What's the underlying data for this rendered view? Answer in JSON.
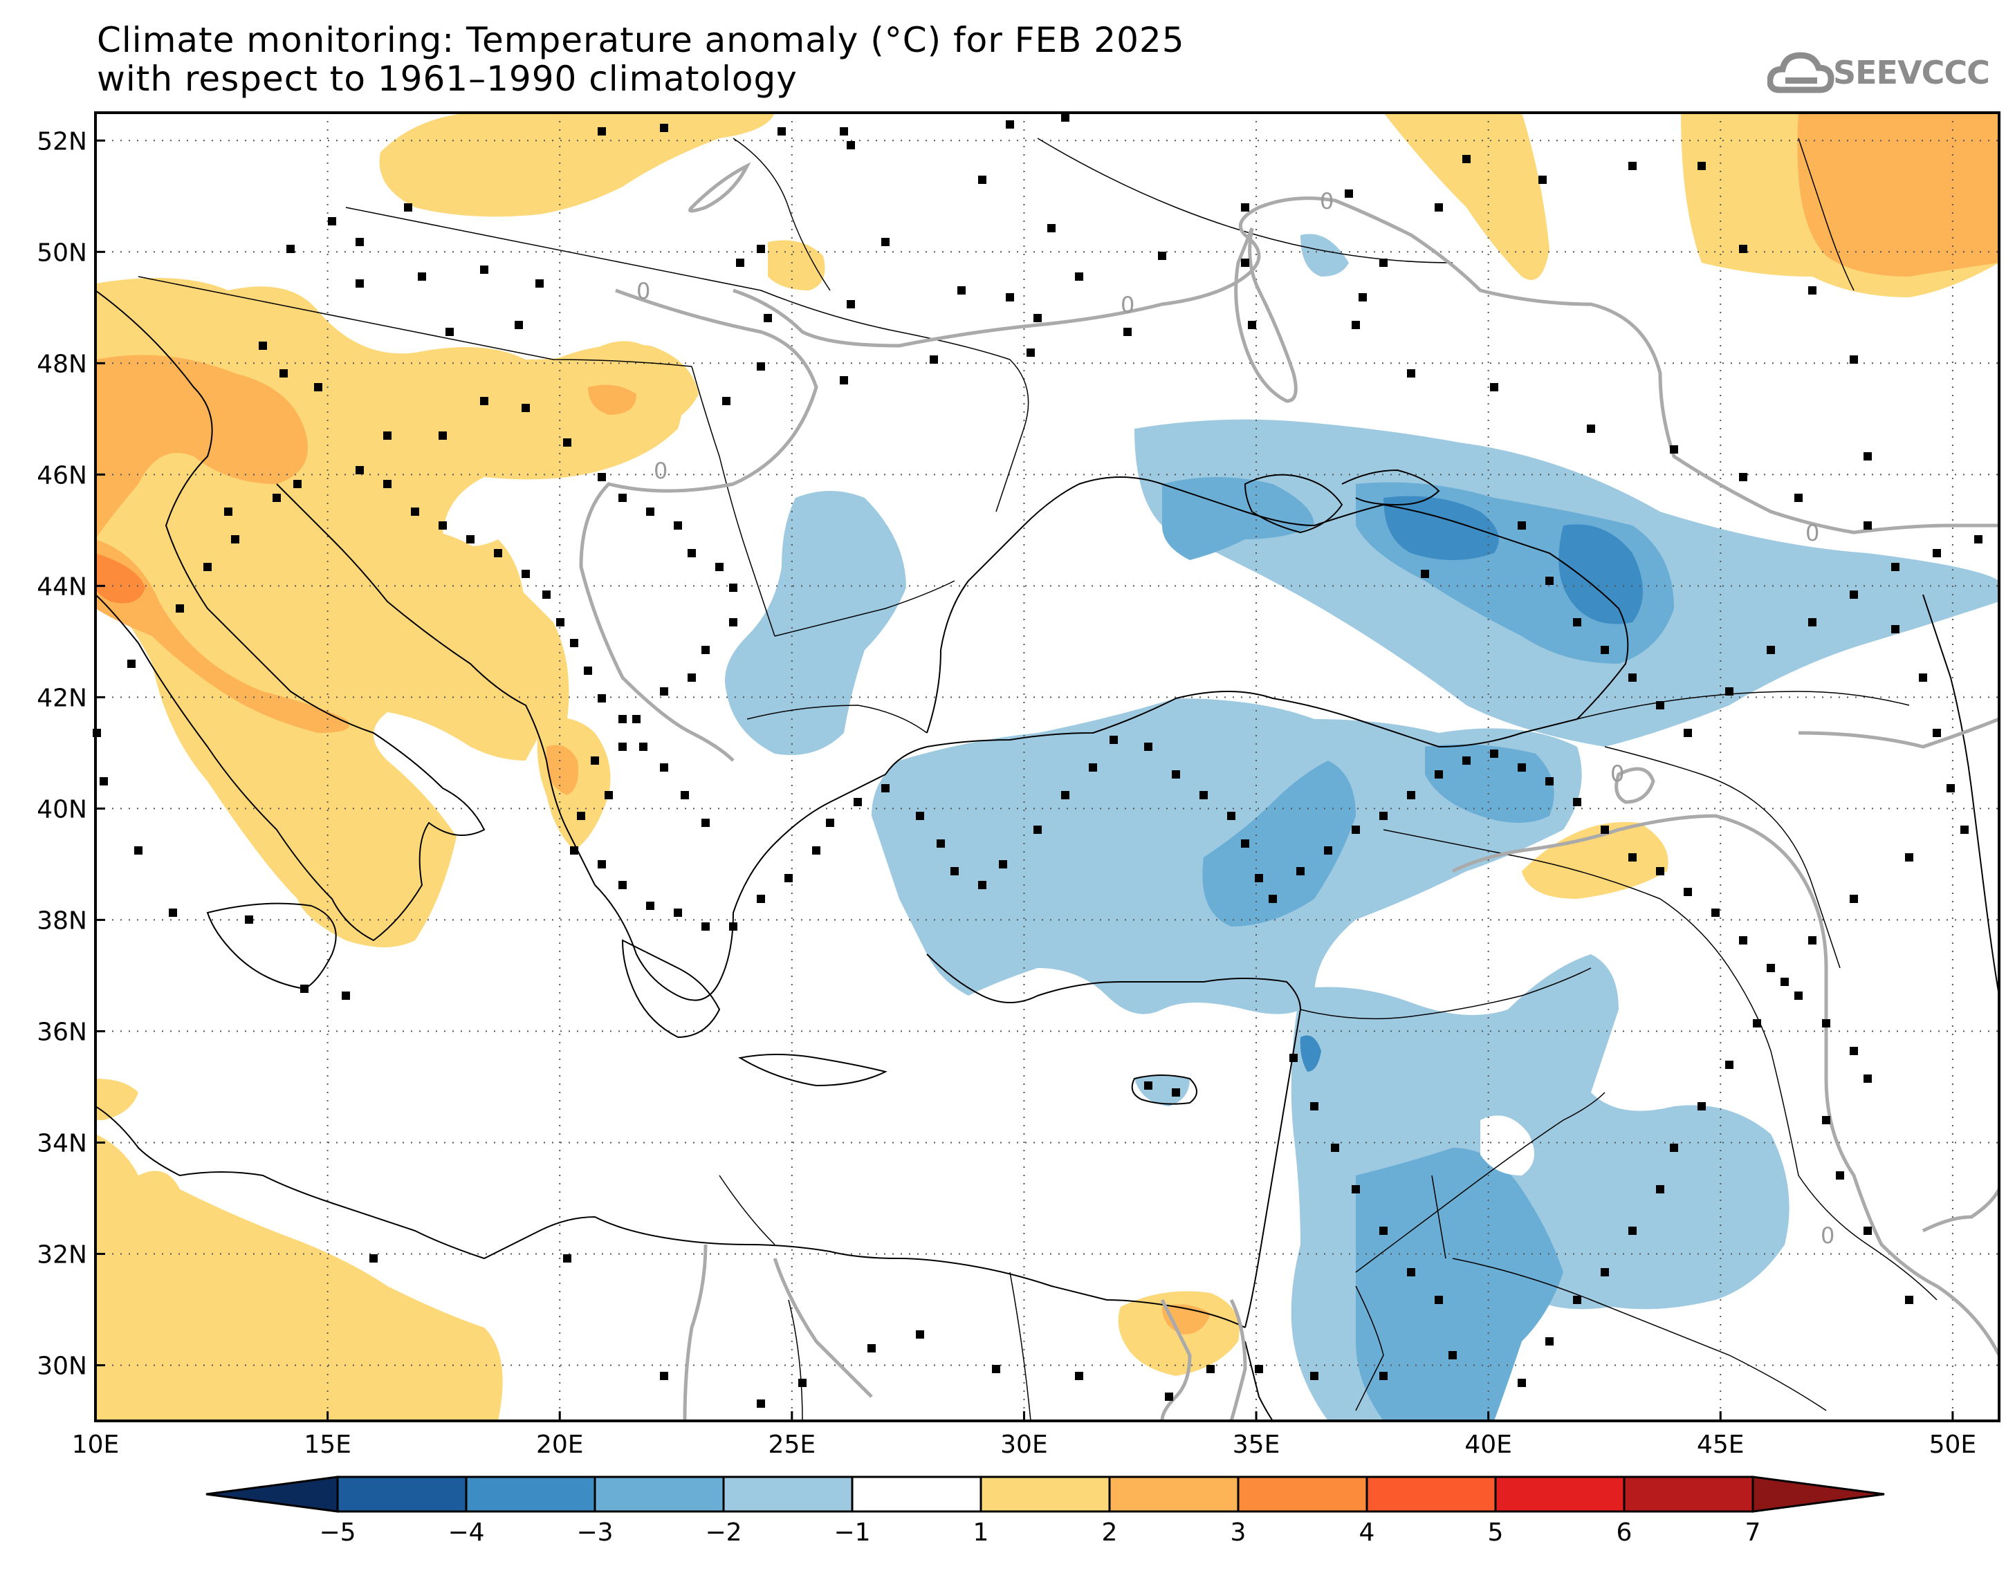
{
  "title": {
    "line1": "Climate monitoring: Temperature anomaly (°C) for FEB 2025",
    "line2": "with respect to 1961–1990 climatology"
  },
  "logo": {
    "text": "SEEVCCC",
    "icon": "cloud-icon"
  },
  "map": {
    "lon_range": [
      10,
      51
    ],
    "lat_range": [
      29,
      52.5
    ],
    "lon_ticks": [
      {
        "value": 10,
        "label": "10E"
      },
      {
        "value": 15,
        "label": "15E"
      },
      {
        "value": 20,
        "label": "20E"
      },
      {
        "value": 25,
        "label": "25E"
      },
      {
        "value": 30,
        "label": "30E"
      },
      {
        "value": 35,
        "label": "35E"
      },
      {
        "value": 40,
        "label": "40E"
      },
      {
        "value": 45,
        "label": "45E"
      },
      {
        "value": 50,
        "label": "50E"
      }
    ],
    "lat_ticks": [
      {
        "value": 30,
        "label": "30N"
      },
      {
        "value": 32,
        "label": "32N"
      },
      {
        "value": 34,
        "label": "34N"
      },
      {
        "value": 36,
        "label": "36N"
      },
      {
        "value": 38,
        "label": "38N"
      },
      {
        "value": 40,
        "label": "40N"
      },
      {
        "value": 42,
        "label": "42N"
      },
      {
        "value": 44,
        "label": "44N"
      },
      {
        "value": 46,
        "label": "46N"
      },
      {
        "value": 48,
        "label": "48N"
      },
      {
        "value": 50,
        "label": "50N"
      },
      {
        "value": 52,
        "label": "52N"
      }
    ],
    "contour_label": "0"
  },
  "colorbar": {
    "labels": [
      "−5",
      "−4",
      "−3",
      "−2",
      "−1",
      "1",
      "2",
      "3",
      "4",
      "5",
      "6",
      "7"
    ],
    "colors": {
      "below": "#0b2a5c",
      "m5": "#1c5c9c",
      "m4": "#3d8cc4",
      "m3": "#6aaed6",
      "m2": "#9ecae1",
      "m1": "#ffffff",
      "p1": "#fdd878",
      "p2": "#fdb456",
      "p3": "#fd8b3c",
      "p4": "#fb5a2c",
      "p5": "#e41f1f",
      "p6": "#b81b1b",
      "above": "#8c1515"
    }
  }
}
